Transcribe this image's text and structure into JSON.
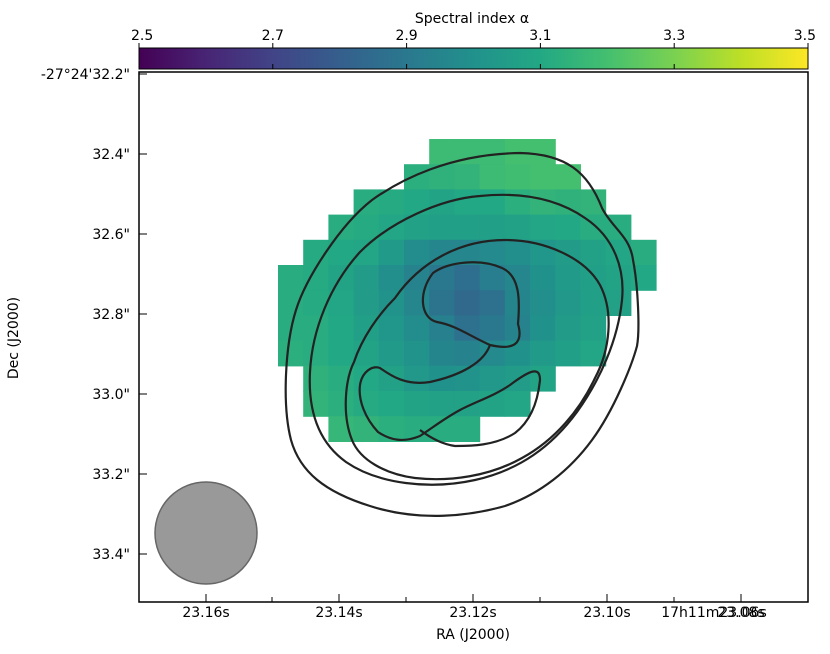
{
  "chart_data": {
    "type": "heatmap",
    "colorbar": {
      "label": "Spectral index α",
      "range": [
        2.5,
        3.5
      ],
      "ticks": [
        "2.5",
        "2.7",
        "2.9",
        "3.1",
        "3.3",
        "3.5"
      ],
      "colormap": "viridis"
    },
    "xlabel": "RA (J2000)",
    "ylabel": "Dec (J2000)",
    "x_ticks": [
      "23.16s",
      "23.14s",
      "23.12s",
      "23.10s",
      "23.08s",
      "17h11m23.06s"
    ],
    "y_ticks": [
      "-27°24'32.2\"",
      "32.4\"",
      "32.6\"",
      "32.8\"",
      "33.0\"",
      "33.2\"",
      "33.4\""
    ],
    "grid": false,
    "beam": {
      "shape": "circle",
      "color": "#999999"
    },
    "contours": {
      "levels": 4,
      "color": "#222222"
    },
    "spectral_index_map": [
      [
        null,
        null,
        null,
        null,
        null,
        null,
        3.18,
        3.18,
        3.18,
        3.2,
        3.2,
        null,
        null,
        null,
        null,
        null,
        null,
        null,
        null,
        null
      ],
      [
        null,
        null,
        null,
        null,
        null,
        3.13,
        3.14,
        3.15,
        3.18,
        3.19,
        3.2,
        3.2,
        null,
        null,
        null,
        null,
        null,
        null,
        null,
        null
      ],
      [
        null,
        null,
        null,
        3.12,
        3.11,
        3.1,
        3.08,
        3.1,
        3.1,
        3.13,
        3.15,
        3.14,
        3.15,
        null,
        null,
        null,
        null,
        null,
        null,
        null
      ],
      [
        null,
        null,
        3.12,
        3.11,
        3.09,
        3.07,
        3.06,
        3.06,
        3.06,
        3.07,
        3.09,
        3.1,
        3.12,
        3.12,
        null,
        null,
        null,
        null,
        null,
        null
      ],
      [
        null,
        3.11,
        3.1,
        3.09,
        3.04,
        2.98,
        2.96,
        2.96,
        2.97,
        2.99,
        3.02,
        3.05,
        3.07,
        3.09,
        3.12,
        null,
        null,
        null,
        null,
        null
      ],
      [
        3.12,
        3.11,
        3.08,
        3.05,
        2.99,
        2.94,
        2.9,
        2.86,
        2.92,
        2.96,
        3.0,
        3.04,
        3.06,
        3.08,
        3.1,
        null,
        null,
        null,
        null,
        null
      ],
      [
        3.12,
        3.11,
        3.09,
        3.05,
        3.01,
        2.96,
        2.88,
        2.84,
        2.87,
        2.95,
        2.99,
        3.03,
        3.06,
        3.07,
        null,
        null,
        null,
        null,
        null,
        null
      ],
      [
        3.12,
        3.12,
        3.1,
        3.06,
        3.02,
        2.98,
        2.93,
        2.87,
        2.9,
        2.94,
        3.0,
        3.05,
        3.07,
        null,
        null,
        null,
        null,
        null,
        null,
        null
      ],
      [
        3.13,
        3.12,
        3.1,
        3.08,
        3.04,
        3.01,
        2.95,
        2.94,
        2.97,
        3.0,
        3.04,
        3.06,
        3.09,
        null,
        null,
        null,
        null,
        null,
        null,
        null
      ],
      [
        null,
        3.14,
        3.12,
        3.1,
        3.07,
        3.03,
        3.0,
        3.01,
        3.03,
        3.05,
        3.08,
        null,
        null,
        null,
        null,
        null,
        null,
        null,
        null,
        null
      ],
      [
        null,
        3.15,
        3.13,
        3.11,
        3.1,
        3.08,
        3.07,
        3.07,
        3.08,
        3.09,
        null,
        null,
        null,
        null,
        null,
        null,
        null,
        null,
        null,
        null
      ],
      [
        null,
        null,
        3.16,
        3.15,
        3.13,
        3.12,
        3.12,
        3.12,
        null,
        null,
        null,
        null,
        null,
        null,
        null,
        null,
        null,
        null,
        null,
        null
      ]
    ]
  }
}
